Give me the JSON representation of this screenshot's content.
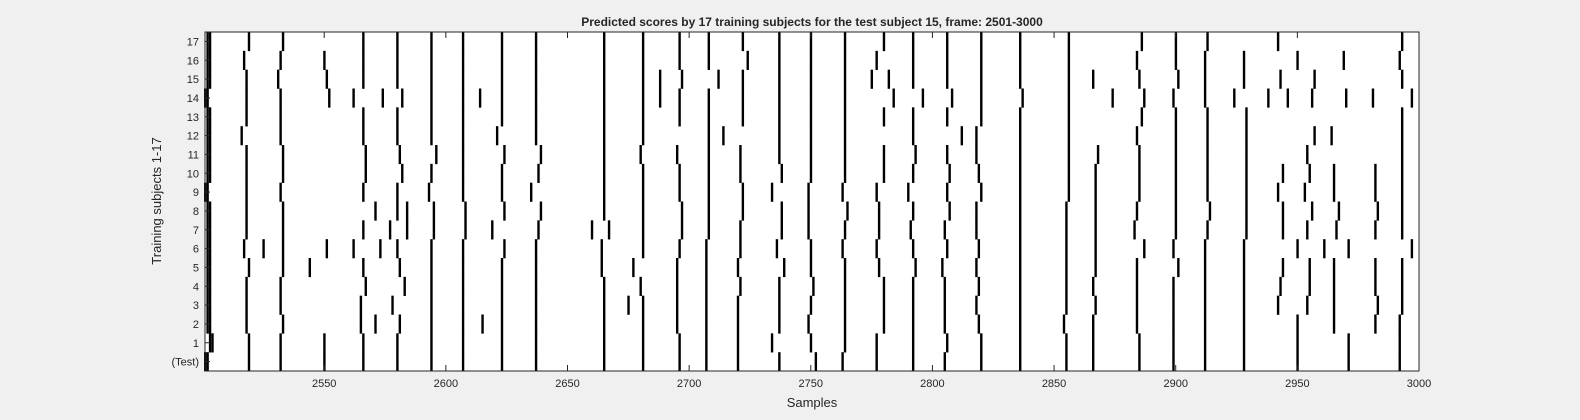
{
  "figure": {
    "background": "#f0f0f0"
  },
  "chart_data": {
    "type": "heatmap",
    "title": "Predicted scores by 17 training subjects for the test subject 15, frame: 2501-3000",
    "xlabel": "Samples",
    "ylabel": "Training subjects 1-17",
    "xlim": [
      2501,
      3000
    ],
    "xticks": [
      2550,
      2600,
      2650,
      2700,
      2750,
      2800,
      2850,
      2900,
      2950,
      3000
    ],
    "xtick_labels": [
      "2550",
      "2600",
      "2650",
      "2700",
      "2750",
      "2800",
      "2850",
      "2900",
      "2950",
      "3000"
    ],
    "ytick_labels": [
      "(Test)",
      "1",
      "2",
      "3",
      "4",
      "5",
      "6",
      "7",
      "8",
      "9",
      "10",
      "11",
      "12",
      "13",
      "14",
      "15",
      "16",
      "17"
    ],
    "colormap": {
      "positive": "#000000",
      "negative": "#ffffff"
    },
    "rows": [
      {
        "label": "(Test)",
        "events": [
          2501,
          2502,
          2519,
          2532,
          2550,
          2566,
          2580,
          2594,
          2607,
          2623,
          2637,
          2665,
          2681,
          2696,
          2707,
          2720,
          2737,
          2752,
          2763,
          2777,
          2792,
          2805,
          2820,
          2836,
          2855,
          2866,
          2885,
          2899,
          2912,
          2928,
          2950,
          2971,
          2992
        ]
      },
      {
        "label": "1",
        "events": [
          2503,
          2504,
          2519,
          2532,
          2550,
          2566,
          2580,
          2594,
          2607,
          2623,
          2637,
          2665,
          2681,
          2696,
          2707,
          2720,
          2734,
          2750,
          2764,
          2777,
          2792,
          2806,
          2820,
          2836,
          2855,
          2866,
          2885,
          2899,
          2912,
          2928,
          2950,
          2971,
          2992
        ]
      },
      {
        "label": "2",
        "events": [
          2502,
          2503,
          2518,
          2533,
          2565,
          2571,
          2581,
          2594,
          2607,
          2615,
          2623,
          2637,
          2665,
          2681,
          2695,
          2707,
          2720,
          2737,
          2749,
          2764,
          2780,
          2792,
          2805,
          2819,
          2836,
          2854,
          2866,
          2884,
          2899,
          2912,
          2928,
          2950,
          2965,
          2982,
          2992
        ]
      },
      {
        "label": "3",
        "events": [
          2502,
          2503,
          2518,
          2532,
          2565,
          2578,
          2594,
          2607,
          2623,
          2637,
          2665,
          2675,
          2681,
          2695,
          2707,
          2720,
          2737,
          2750,
          2764,
          2780,
          2792,
          2805,
          2818,
          2836,
          2855,
          2867,
          2884,
          2899,
          2912,
          2928,
          2942,
          2954,
          2965,
          2983,
          2993
        ]
      },
      {
        "label": "4",
        "events": [
          2502,
          2503,
          2518,
          2532,
          2567,
          2583,
          2594,
          2607,
          2623,
          2637,
          2665,
          2680,
          2695,
          2707,
          2721,
          2737,
          2751,
          2764,
          2780,
          2792,
          2805,
          2819,
          2836,
          2855,
          2866,
          2884,
          2899,
          2912,
          2928,
          2943,
          2955,
          2965,
          2982,
          2993
        ]
      },
      {
        "label": "5",
        "events": [
          2502,
          2503,
          2519,
          2533,
          2544,
          2566,
          2581,
          2594,
          2607,
          2623,
          2637,
          2664,
          2677,
          2695,
          2707,
          2720,
          2739,
          2750,
          2764,
          2778,
          2793,
          2804,
          2818,
          2836,
          2855,
          2867,
          2884,
          2901,
          2912,
          2928,
          2944,
          2955,
          2965,
          2982,
          2993
        ]
      },
      {
        "label": "6",
        "events": [
          2502,
          2503,
          2517,
          2525,
          2533,
          2551,
          2562,
          2573,
          2580,
          2594,
          2607,
          2624,
          2637,
          2664,
          2681,
          2696,
          2707,
          2721,
          2736,
          2750,
          2763,
          2777,
          2792,
          2806,
          2819,
          2836,
          2855,
          2867,
          2887,
          2899,
          2912,
          2928,
          2950,
          2961,
          2971,
          2997
        ]
      },
      {
        "label": "7",
        "events": [
          2502,
          2503,
          2518,
          2533,
          2566,
          2577,
          2584,
          2595,
          2608,
          2619,
          2638,
          2660,
          2667,
          2681,
          2697,
          2708,
          2721,
          2738,
          2749,
          2764,
          2778,
          2791,
          2805,
          2818,
          2836,
          2855,
          2867,
          2883,
          2900,
          2913,
          2929,
          2944,
          2954,
          2966,
          2982,
          2993
        ]
      },
      {
        "label": "8",
        "events": [
          2502,
          2503,
          2518,
          2533,
          2571,
          2580,
          2584,
          2595,
          2608,
          2624,
          2639,
          2665,
          2681,
          2697,
          2708,
          2722,
          2738,
          2749,
          2765,
          2778,
          2792,
          2807,
          2818,
          2836,
          2855,
          2867,
          2884,
          2900,
          2914,
          2929,
          2944,
          2956,
          2967,
          2983,
          2993
        ]
      },
      {
        "label": "9",
        "events": [
          2501,
          2502,
          2518,
          2532,
          2566,
          2580,
          2593,
          2607,
          2623,
          2635,
          2665,
          2681,
          2696,
          2708,
          2722,
          2734,
          2749,
          2763,
          2777,
          2790,
          2806,
          2820,
          2836,
          2856,
          2867,
          2885,
          2900,
          2913,
          2929,
          2942,
          2953,
          2965,
          2982,
          2993
        ]
      },
      {
        "label": "10",
        "events": [
          2502,
          2503,
          2518,
          2533,
          2567,
          2582,
          2594,
          2607,
          2623,
          2638,
          2665,
          2681,
          2696,
          2708,
          2721,
          2738,
          2750,
          2764,
          2780,
          2792,
          2807,
          2819,
          2836,
          2856,
          2867,
          2885,
          2900,
          2913,
          2929,
          2944,
          2955,
          2965,
          2982,
          2993
        ]
      },
      {
        "label": "11",
        "events": [
          2502,
          2503,
          2518,
          2533,
          2567,
          2581,
          2596,
          2607,
          2624,
          2639,
          2665,
          2680,
          2695,
          2708,
          2721,
          2737,
          2750,
          2764,
          2780,
          2793,
          2806,
          2818,
          2836,
          2856,
          2868,
          2885,
          2900,
          2913,
          2929,
          2954,
          2993
        ]
      },
      {
        "label": "12",
        "events": [
          2502,
          2503,
          2516,
          2532,
          2566,
          2580,
          2594,
          2607,
          2621,
          2637,
          2665,
          2681,
          2708,
          2714,
          2737,
          2750,
          2764,
          2792,
          2812,
          2818,
          2836,
          2856,
          2884,
          2900,
          2913,
          2929,
          2957,
          2964,
          2993
        ]
      },
      {
        "label": "13",
        "events": [
          2502,
          2503,
          2518,
          2532,
          2566,
          2580,
          2594,
          2607,
          2623,
          2637,
          2665,
          2681,
          2696,
          2708,
          2722,
          2737,
          2750,
          2764,
          2780,
          2792,
          2806,
          2820,
          2836,
          2856,
          2886,
          2900,
          2913,
          2929,
          2993
        ]
      },
      {
        "label": "14",
        "events": [
          2501,
          2502,
          2518,
          2532,
          2552,
          2562,
          2574,
          2582,
          2594,
          2607,
          2614,
          2623,
          2637,
          2665,
          2681,
          2688,
          2696,
          2708,
          2722,
          2737,
          2750,
          2764,
          2784,
          2796,
          2808,
          2820,
          2837,
          2856,
          2874,
          2887,
          2899,
          2912,
          2924,
          2938,
          2946,
          2956,
          2970,
          2981,
          2997
        ]
      },
      {
        "label": "15",
        "events": [
          2502,
          2503,
          2518,
          2531,
          2551,
          2566,
          2580,
          2594,
          2607,
          2623,
          2637,
          2665,
          2681,
          2688,
          2697,
          2712,
          2722,
          2737,
          2750,
          2764,
          2775,
          2782,
          2792,
          2806,
          2820,
          2836,
          2856,
          2866,
          2885,
          2901,
          2912,
          2928,
          2943,
          2957,
          2993
        ]
      },
      {
        "label": "16",
        "events": [
          2502,
          2503,
          2517,
          2532,
          2550,
          2566,
          2580,
          2594,
          2607,
          2623,
          2637,
          2665,
          2681,
          2696,
          2708,
          2724,
          2737,
          2750,
          2764,
          2777,
          2792,
          2806,
          2820,
          2836,
          2856,
          2884,
          2900,
          2912,
          2928,
          2950,
          2969,
          2992
        ]
      },
      {
        "label": "17",
        "events": [
          2502,
          2503,
          2519,
          2533,
          2566,
          2580,
          2594,
          2607,
          2623,
          2637,
          2665,
          2681,
          2696,
          2708,
          2722,
          2737,
          2750,
          2764,
          2780,
          2792,
          2806,
          2820,
          2836,
          2856,
          2886,
          2900,
          2913,
          2942,
          2993
        ]
      }
    ]
  }
}
